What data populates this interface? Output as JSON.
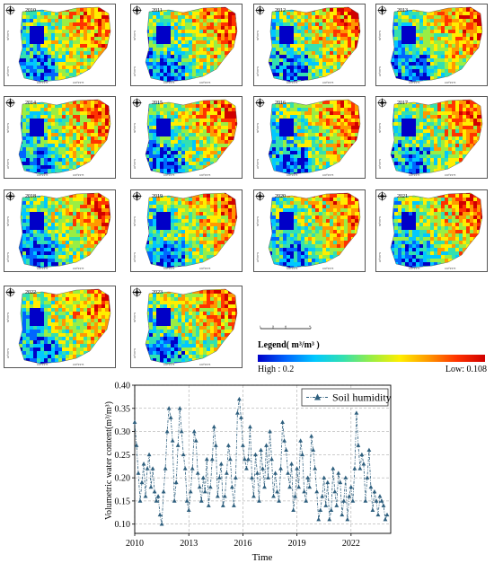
{
  "maps": {
    "years": [
      "2010",
      "2011",
      "2012",
      "2013",
      "2014",
      "2015",
      "2016",
      "2017",
      "2018",
      "2019",
      "2020",
      "2021",
      "2022",
      "2023"
    ],
    "lon_labels": [
      "100°0'0\"E",
      "100°0'0\"E"
    ],
    "lat_labels": [
      "50°0'0\"N",
      "45°0'0\"N"
    ],
    "scale_ticks": [
      "0",
      "20",
      "40",
      "80"
    ]
  },
  "legend": {
    "title": "Legend( m³/m³ )",
    "high": "High : 0.2",
    "low": "Low: 0.108",
    "colors": [
      "#0000c8",
      "#0066ff",
      "#00c8ff",
      "#33e0b0",
      "#99ee44",
      "#ffee00",
      "#ff9900",
      "#ff3300",
      "#d00000"
    ]
  },
  "chart_data": {
    "type": "line",
    "xlabel": "Time",
    "ylabel": "Volumetric water content(m³/m³)",
    "x_ticks": [
      "2010",
      "2013",
      "2016",
      "2019",
      "2022"
    ],
    "y_ticks": [
      "0.10",
      "0.15",
      "0.20",
      "0.25",
      "0.30",
      "0.35",
      "0.40"
    ],
    "xlim": [
      2010,
      2024.2
    ],
    "ylim": [
      0.08,
      0.4
    ],
    "grid": true,
    "legend_position": "top-right",
    "series": [
      {
        "name": "Soil humidity",
        "color": "#2e5f7e",
        "x": [
          2010.0,
          2010.1,
          2010.2,
          2010.3,
          2010.4,
          2010.5,
          2010.6,
          2010.7,
          2010.8,
          2010.9,
          2011.0,
          2011.1,
          2011.2,
          2011.3,
          2011.4,
          2011.5,
          2011.6,
          2011.7,
          2011.8,
          2011.9,
          2012.0,
          2012.1,
          2012.2,
          2012.3,
          2012.4,
          2012.5,
          2012.6,
          2012.7,
          2012.8,
          2012.9,
          2013.0,
          2013.1,
          2013.2,
          2013.3,
          2013.4,
          2013.5,
          2013.6,
          2013.7,
          2013.8,
          2013.9,
          2014.0,
          2014.1,
          2014.2,
          2014.3,
          2014.4,
          2014.5,
          2014.6,
          2014.7,
          2014.8,
          2014.9,
          2015.0,
          2015.1,
          2015.2,
          2015.3,
          2015.4,
          2015.5,
          2015.6,
          2015.7,
          2015.8,
          2015.9,
          2016.0,
          2016.1,
          2016.2,
          2016.3,
          2016.4,
          2016.5,
          2016.6,
          2016.7,
          2016.8,
          2016.9,
          2017.0,
          2017.1,
          2017.2,
          2017.3,
          2017.4,
          2017.5,
          2017.6,
          2017.7,
          2017.8,
          2017.9,
          2018.0,
          2018.1,
          2018.2,
          2018.3,
          2018.4,
          2018.5,
          2018.6,
          2018.7,
          2018.8,
          2018.9,
          2019.0,
          2019.1,
          2019.2,
          2019.3,
          2019.4,
          2019.5,
          2019.6,
          2019.7,
          2019.8,
          2019.9,
          2020.0,
          2020.1,
          2020.2,
          2020.3,
          2020.4,
          2020.5,
          2020.6,
          2020.7,
          2020.8,
          2020.9,
          2021.0,
          2021.1,
          2021.2,
          2021.3,
          2021.4,
          2021.5,
          2021.6,
          2021.7,
          2021.8,
          2021.9,
          2022.0,
          2022.1,
          2022.2,
          2022.3,
          2022.4,
          2022.5,
          2022.6,
          2022.7,
          2022.8,
          2022.9,
          2023.0,
          2023.1,
          2023.2,
          2023.3,
          2023.4,
          2023.5,
          2023.6,
          2023.7,
          2023.8,
          2023.9,
          2024.0
        ],
        "values": [
          0.32,
          0.27,
          0.21,
          0.15,
          0.19,
          0.23,
          0.16,
          0.22,
          0.25,
          0.18,
          0.22,
          0.17,
          0.15,
          0.16,
          0.12,
          0.1,
          0.17,
          0.22,
          0.3,
          0.35,
          0.33,
          0.28,
          0.15,
          0.19,
          0.27,
          0.35,
          0.3,
          0.25,
          0.22,
          0.15,
          0.13,
          0.17,
          0.22,
          0.3,
          0.28,
          0.21,
          0.18,
          0.15,
          0.2,
          0.17,
          0.24,
          0.14,
          0.18,
          0.24,
          0.31,
          0.27,
          0.16,
          0.2,
          0.23,
          0.14,
          0.16,
          0.21,
          0.27,
          0.24,
          0.18,
          0.14,
          0.2,
          0.34,
          0.37,
          0.33,
          0.27,
          0.24,
          0.22,
          0.24,
          0.31,
          0.2,
          0.16,
          0.25,
          0.21,
          0.15,
          0.26,
          0.22,
          0.18,
          0.27,
          0.2,
          0.3,
          0.24,
          0.16,
          0.21,
          0.17,
          0.15,
          0.22,
          0.32,
          0.28,
          0.26,
          0.21,
          0.18,
          0.23,
          0.13,
          0.16,
          0.22,
          0.18,
          0.28,
          0.25,
          0.17,
          0.15,
          0.2,
          0.18,
          0.29,
          0.26,
          0.22,
          0.17,
          0.11,
          0.13,
          0.16,
          0.2,
          0.14,
          0.19,
          0.11,
          0.13,
          0.22,
          0.17,
          0.14,
          0.21,
          0.19,
          0.12,
          0.15,
          0.2,
          0.11,
          0.16,
          0.18,
          0.15,
          0.22,
          0.34,
          0.27,
          0.22,
          0.25,
          0.23,
          0.15,
          0.2,
          0.26,
          0.18,
          0.13,
          0.17,
          0.15,
          0.12,
          0.16,
          0.15,
          0.14,
          0.11,
          0.12
        ]
      }
    ]
  }
}
